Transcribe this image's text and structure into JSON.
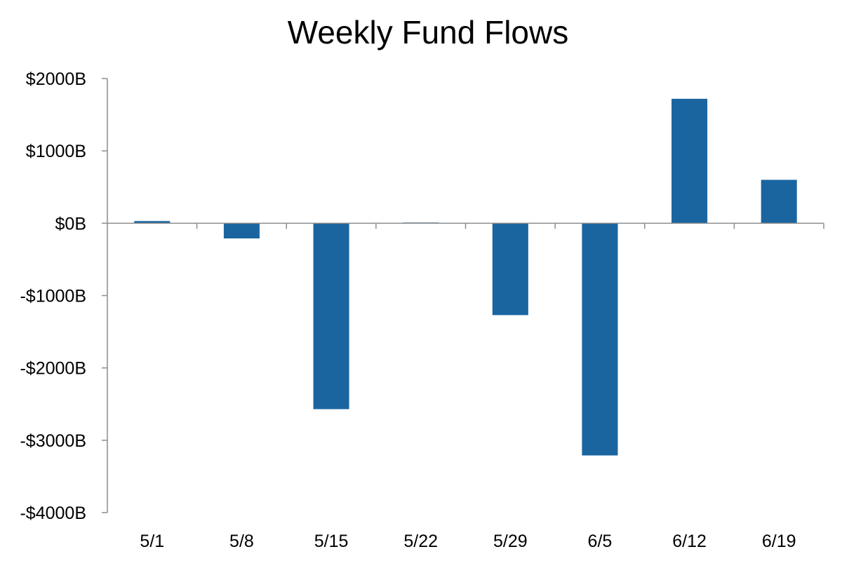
{
  "chart_data": {
    "type": "bar",
    "title": "Weekly Fund Flows",
    "xlabel": "",
    "ylabel": "",
    "categories": [
      "5/1",
      "5/8",
      "5/15",
      "5/22",
      "5/29",
      "6/5",
      "6/12",
      "6/19"
    ],
    "values": [
      30,
      -210,
      -2570,
      10,
      -1270,
      -3210,
      1720,
      600
    ],
    "ylim": [
      -4000,
      2000
    ],
    "yticks": [
      2000,
      1000,
      0,
      -1000,
      -2000,
      -3000,
      -4000
    ],
    "ytick_labels": [
      "$2000B",
      "$1000B",
      "$0B",
      "-$1000B",
      "-$2000B",
      "-$3000B",
      "-$4000B"
    ],
    "grid": false,
    "legend": "none",
    "bar_color": "#1a65a0",
    "axis_color": "#8c8c8c"
  }
}
